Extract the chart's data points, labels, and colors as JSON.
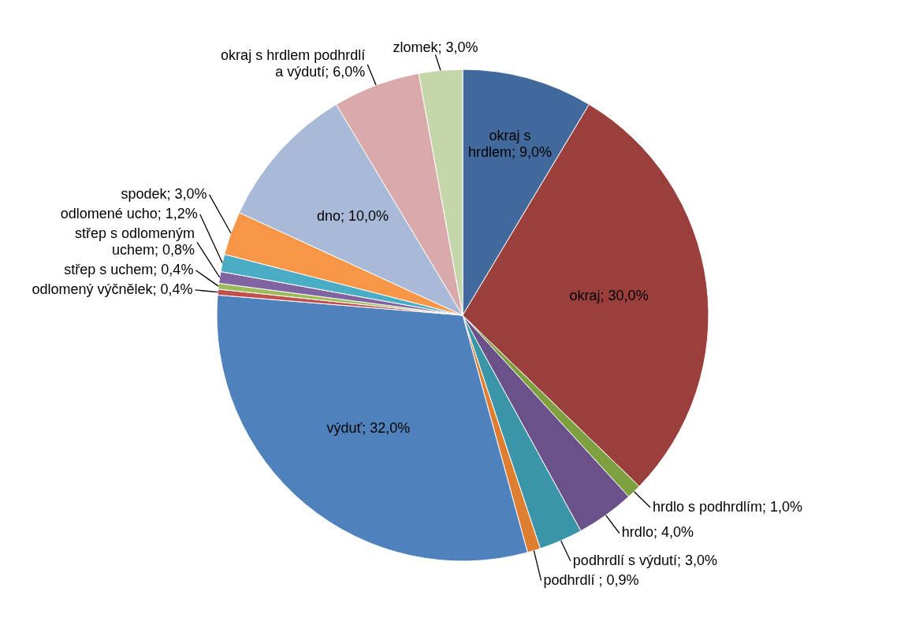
{
  "chart_data": {
    "type": "pie",
    "categories": [
      "okraj s hrdlem",
      "okraj",
      "hrdlo s podhrdlím",
      "hrdlo",
      "podhrdlí s výdutí",
      "podhrdlí ",
      "výduť",
      "odlomený výčnělek",
      "střep s uchem",
      "střep s odlomeným uchem",
      "odlomené ucho",
      "spodek",
      "dno",
      "okraj s hrdlem podhrdlí a výdutí",
      "zlomek"
    ],
    "values": [
      9,
      30,
      1,
      4,
      3,
      0.9,
      32,
      0.4,
      0.4,
      0.8,
      1.2,
      3,
      10,
      6,
      3
    ],
    "value_labels": [
      "9,0%",
      "30,0%",
      "1,0%",
      "4,0%",
      "3,0%",
      "0,9%",
      "32,0%",
      "0,4%",
      "0,4%",
      "0,8%",
      "1,2%",
      "3,0%",
      "10,0%",
      "6,0%",
      "3,0%"
    ],
    "colors": [
      "#41699b",
      "#9b3f3c",
      "#7ea03e",
      "#6a5189",
      "#3a95a9",
      "#dd7e31",
      "#4f81bd",
      "#c0504d",
      "#9bbb59",
      "#8064a2",
      "#4bacc6",
      "#f79646",
      "#a9b9d8",
      "#d9aaa9",
      "#c5d6aa"
    ]
  }
}
